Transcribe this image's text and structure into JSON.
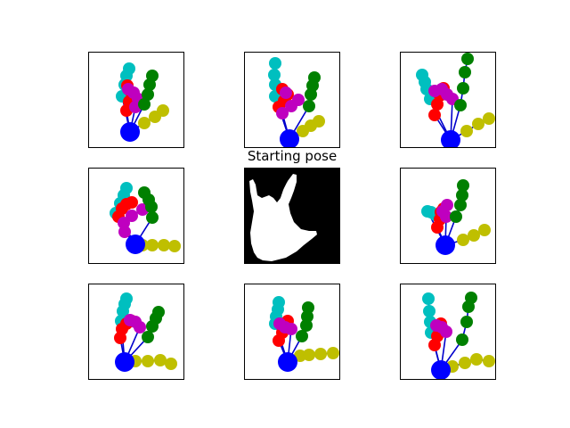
{
  "chart_data": {
    "type": "scatter",
    "colors": {
      "wrist": "#0000ff",
      "bones": "#0000cc",
      "thumb": "#bfbf00",
      "index": "#008000",
      "middle": "#bf00bf",
      "ring": "#ff0000",
      "pinky": "#00bfbf",
      "silhouette_bg": "#000000",
      "silhouette_fg": "#ffffff"
    },
    "center_title": "Starting pose",
    "center_image": "hand-silhouette",
    "poses": [
      {
        "name": "pose-1",
        "wrist": [
          46,
          89
        ],
        "thumb": [
          [
            62,
            79
          ],
          [
            74,
            72
          ],
          [
            83,
            65
          ]
        ],
        "index": [
          [
            62,
            58
          ],
          [
            66,
            47
          ],
          [
            68,
            36
          ],
          [
            71,
            26
          ]
        ],
        "middle": [
          [
            52,
            61
          ],
          [
            55,
            52
          ],
          [
            50,
            45
          ],
          [
            44,
            41
          ]
        ],
        "ring": [
          [
            42,
            65
          ],
          [
            45,
            55
          ],
          [
            47,
            44
          ],
          [
            43,
            37
          ]
        ],
        "pinky": [
          [
            37,
            49
          ],
          [
            40,
            36
          ],
          [
            42,
            26
          ],
          [
            45,
            18
          ]
        ]
      },
      {
        "name": "pose-2",
        "wrist": [
          50,
          97
        ],
        "thumb": [
          [
            65,
            88
          ],
          [
            74,
            82
          ],
          [
            83,
            77
          ]
        ],
        "index": [
          [
            72,
            60
          ],
          [
            74,
            47
          ],
          [
            76,
            37
          ],
          [
            78,
            28
          ]
        ],
        "middle": [
          [
            42,
            68
          ],
          [
            52,
            60
          ],
          [
            60,
            53
          ],
          [
            46,
            45
          ]
        ],
        "ring": [
          [
            38,
            61
          ],
          [
            44,
            54
          ],
          [
            48,
            47
          ],
          [
            42,
            41
          ]
        ],
        "pinky": [
          [
            34,
            49
          ],
          [
            34,
            36
          ],
          [
            33,
            25
          ],
          [
            34,
            12
          ]
        ]
      },
      {
        "name": "pose-3",
        "wrist": [
          56,
          98
        ],
        "thumb": [
          [
            74,
            88
          ],
          [
            87,
            80
          ],
          [
            99,
            74
          ]
        ],
        "index": [
          [
            67,
            59
          ],
          [
            70,
            40
          ],
          [
            72,
            22
          ],
          [
            75,
            7
          ]
        ],
        "middle": [
          [
            58,
            52
          ],
          [
            52,
            47
          ],
          [
            46,
            41
          ],
          [
            38,
            43
          ]
        ],
        "ring": [
          [
            38,
            70
          ],
          [
            41,
            58
          ],
          [
            44,
            48
          ],
          [
            48,
            40
          ]
        ],
        "pinky": [
          [
            33,
            52
          ],
          [
            29,
            41
          ],
          [
            27,
            33
          ],
          [
            24,
            25
          ]
        ]
      },
      {
        "name": "pose-4",
        "wrist": [
          52,
          85
        ],
        "thumb": [
          [
            60,
            86
          ],
          [
            71,
            86
          ],
          [
            84,
            86
          ],
          [
            96,
            87
          ]
        ],
        "index": [
          [
            71,
            55
          ],
          [
            70,
            43
          ],
          [
            67,
            35
          ],
          [
            62,
            27
          ]
        ],
        "middle": [
          [
            40,
            71
          ],
          [
            39,
            61
          ],
          [
            48,
            53
          ],
          [
            60,
            46
          ]
        ],
        "ring": [
          [
            33,
            54
          ],
          [
            37,
            45
          ],
          [
            42,
            40
          ],
          [
            48,
            38
          ]
        ],
        "pinky": [
          [
            30,
            50
          ],
          [
            35,
            39
          ],
          [
            39,
            30
          ],
          [
            42,
            22
          ]
        ]
      },
      {
        "name": "pose-5",
        "wrist": [
          50,
          86
        ],
        "thumb": [
          [
            70,
            80
          ],
          [
            82,
            75
          ],
          [
            94,
            69
          ]
        ],
        "index": [
          [
            62,
            54
          ],
          [
            67,
            41
          ],
          [
            69,
            30
          ],
          [
            70,
            19
          ]
        ],
        "middle": [
          [
            51,
            54
          ],
          [
            47,
            48
          ],
          [
            52,
            41
          ]
        ],
        "ring": [
          [
            41,
            66
          ],
          [
            44,
            57
          ],
          [
            45,
            49
          ],
          [
            48,
            45
          ]
        ],
        "pinky": [
          [
            30,
            48
          ],
          [
            34,
            49
          ],
          [
            39,
            52
          ]
        ]
      },
      {
        "name": "pose-6",
        "wrist": [
          40,
          87
        ],
        "thumb": [
          [
            52,
            86
          ],
          [
            66,
            86
          ],
          [
            80,
            85
          ],
          [
            92,
            89
          ]
        ],
        "index": [
          [
            66,
            59
          ],
          [
            71,
            47
          ],
          [
            75,
            38
          ],
          [
            78,
            31
          ]
        ],
        "middle": [
          [
            57,
            48
          ],
          [
            52,
            42
          ],
          [
            46,
            40
          ]
        ],
        "ring": [
          [
            35,
            60
          ],
          [
            37,
            50
          ],
          [
            42,
            44
          ],
          [
            48,
            41
          ]
        ],
        "pinky": [
          [
            36,
            41
          ],
          [
            38,
            30
          ],
          [
            40,
            22
          ],
          [
            42,
            16
          ]
        ]
      },
      {
        "name": "pose-7",
        "wrist": [
          48,
          87
        ],
        "thumb": [
          [
            62,
            80
          ],
          [
            72,
            79
          ],
          [
            85,
            78
          ],
          [
            99,
            77
          ]
        ],
        "index": [
          [
            64,
            58
          ],
          [
            69,
            46
          ],
          [
            70,
            36
          ],
          [
            71,
            26
          ]
        ],
        "middle": [
          [
            52,
            50
          ],
          [
            45,
            48
          ],
          [
            39,
            44
          ]
        ],
        "ring": [
          [
            38,
            63
          ],
          [
            42,
            54
          ],
          [
            44,
            46
          ],
          [
            48,
            41
          ]
        ],
        "pinky": [
          [
            34,
            44
          ],
          [
            35,
            36
          ],
          [
            37,
            28
          ],
          [
            38,
            20
          ]
        ]
      },
      {
        "name": "pose-8",
        "wrist": [
          45,
          96
        ],
        "thumb": [
          [
            58,
            92
          ],
          [
            72,
            88
          ],
          [
            85,
            84
          ],
          [
            99,
            86
          ]
        ],
        "index": [
          [
            69,
            62
          ],
          [
            74,
            42
          ],
          [
            76,
            25
          ],
          [
            79,
            15
          ]
        ],
        "middle": [
          [
            51,
            53
          ],
          [
            46,
            48
          ],
          [
            40,
            46
          ]
        ],
        "ring": [
          [
            38,
            68
          ],
          [
            41,
            58
          ],
          [
            43,
            49
          ],
          [
            45,
            44
          ]
        ],
        "pinky": [
          [
            34,
            54
          ],
          [
            33,
            42
          ],
          [
            32,
            30
          ],
          [
            31,
            16
          ]
        ]
      }
    ]
  }
}
